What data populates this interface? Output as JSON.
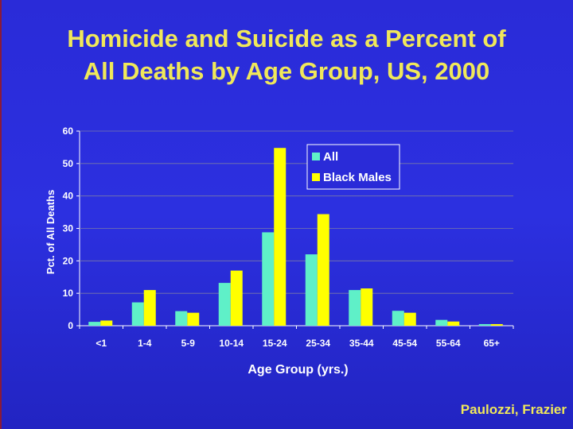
{
  "slide": {
    "title_line1": "Homicide and Suicide as a Percent of",
    "title_line2": "All Deaths by Age Group, US, 2000",
    "credit": "Paulozzi, Frazier"
  },
  "colors": {
    "background": "#2a2bd8",
    "title": "#f0e85a",
    "series_all": "#5ff0c8",
    "series_black_males": "#ffff00",
    "axis_text": "#ffffff"
  },
  "chart_data": {
    "type": "bar",
    "xlabel": "Age Group (yrs.)",
    "ylabel": "Pct. of All Deaths",
    "ylim": [
      0,
      60
    ],
    "yticks": [
      0,
      10,
      20,
      30,
      40,
      50,
      60
    ],
    "grid": true,
    "legend_position": "top-right",
    "categories": [
      "<1",
      "1-4",
      "5-9",
      "10-14",
      "15-24",
      "25-34",
      "35-44",
      "45-54",
      "55-64",
      "65+"
    ],
    "series": [
      {
        "name": "All",
        "values": [
          1.2,
          7.2,
          4.5,
          13.2,
          28.8,
          22.0,
          11.0,
          4.6,
          1.8,
          0.5
        ]
      },
      {
        "name": "Black Males",
        "values": [
          1.6,
          11.0,
          4.0,
          17.0,
          54.8,
          34.4,
          11.5,
          4.0,
          1.3,
          0.5
        ]
      }
    ]
  }
}
